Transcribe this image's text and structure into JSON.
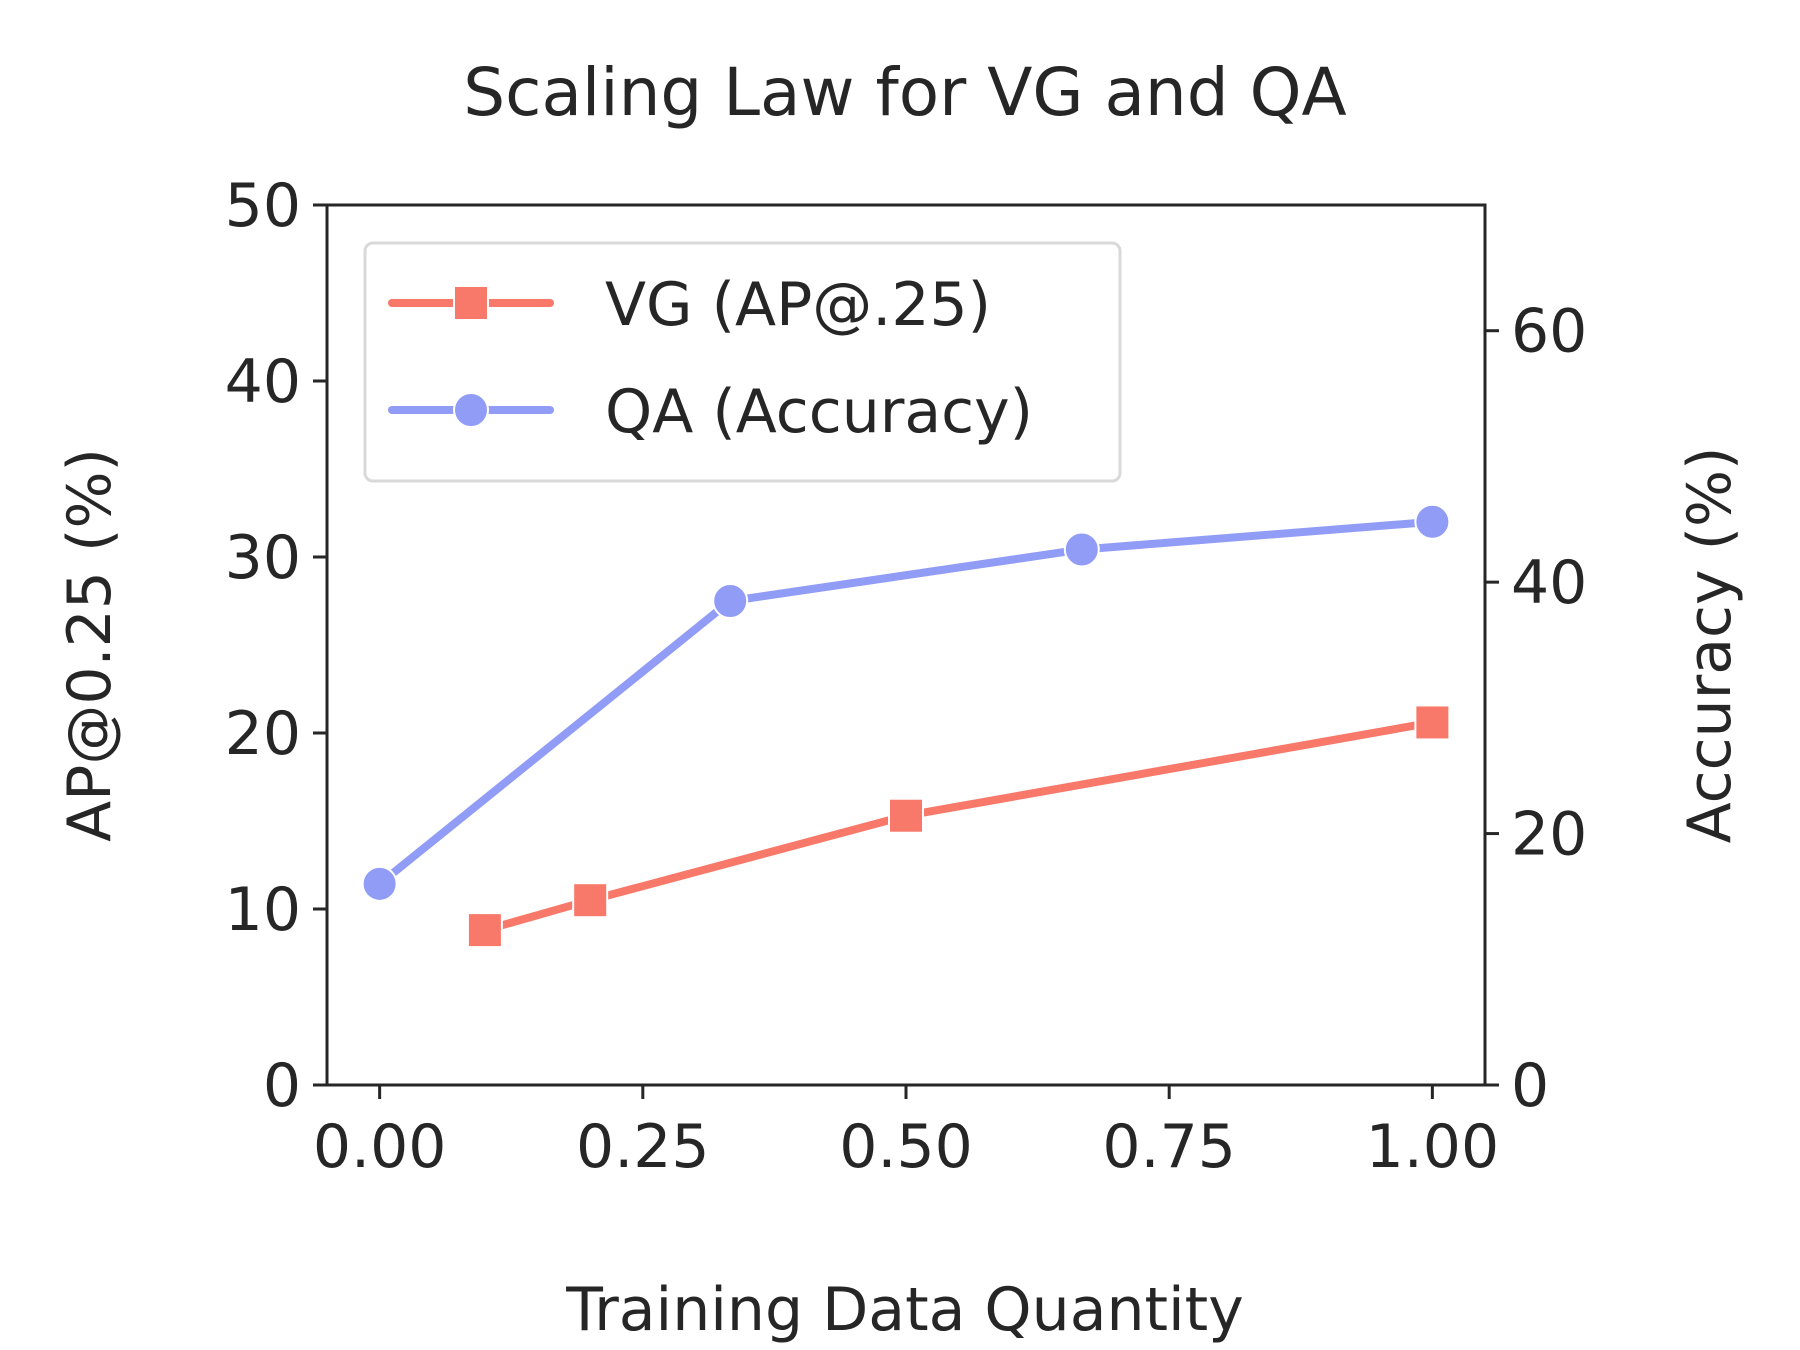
{
  "chart_data": {
    "type": "line",
    "title": "Scaling Law for VG and QA",
    "xlabel": "Training Data Quantity",
    "ylabel": "AP@0.25 (%)",
    "ylabel_right": "Accuracy (%)",
    "xlim": [
      -0.05,
      1.05
    ],
    "ylim": [
      0,
      50
    ],
    "ylim_right": [
      0,
      70
    ],
    "xticks": [
      0.0,
      0.25,
      0.5,
      0.75,
      1.0
    ],
    "xtick_labels": [
      "0.00",
      "0.25",
      "0.50",
      "0.75",
      "1.00"
    ],
    "yticks": [
      0,
      10,
      20,
      30,
      40,
      50
    ],
    "ytick_labels": [
      "0",
      "10",
      "20",
      "30",
      "40",
      "50"
    ],
    "yticks_right": [
      0,
      20,
      40,
      60
    ],
    "ytick_labels_right": [
      "0",
      "20",
      "40",
      "60"
    ],
    "grid": false,
    "legend_position": "top-left",
    "series": [
      {
        "name": "VG (AP@.25)",
        "axis": "left",
        "marker": "square",
        "color": "#F8796A",
        "x": [
          0.1,
          0.2,
          0.5,
          1.0
        ],
        "y": [
          8.8,
          10.5,
          15.3,
          20.6
        ]
      },
      {
        "name": "QA (Accuracy)",
        "axis": "right",
        "marker": "circle",
        "color": "#919CF7",
        "x": [
          0.0,
          0.333,
          0.667,
          1.0
        ],
        "y": [
          16.0,
          38.5,
          42.6,
          44.8
        ]
      }
    ]
  }
}
